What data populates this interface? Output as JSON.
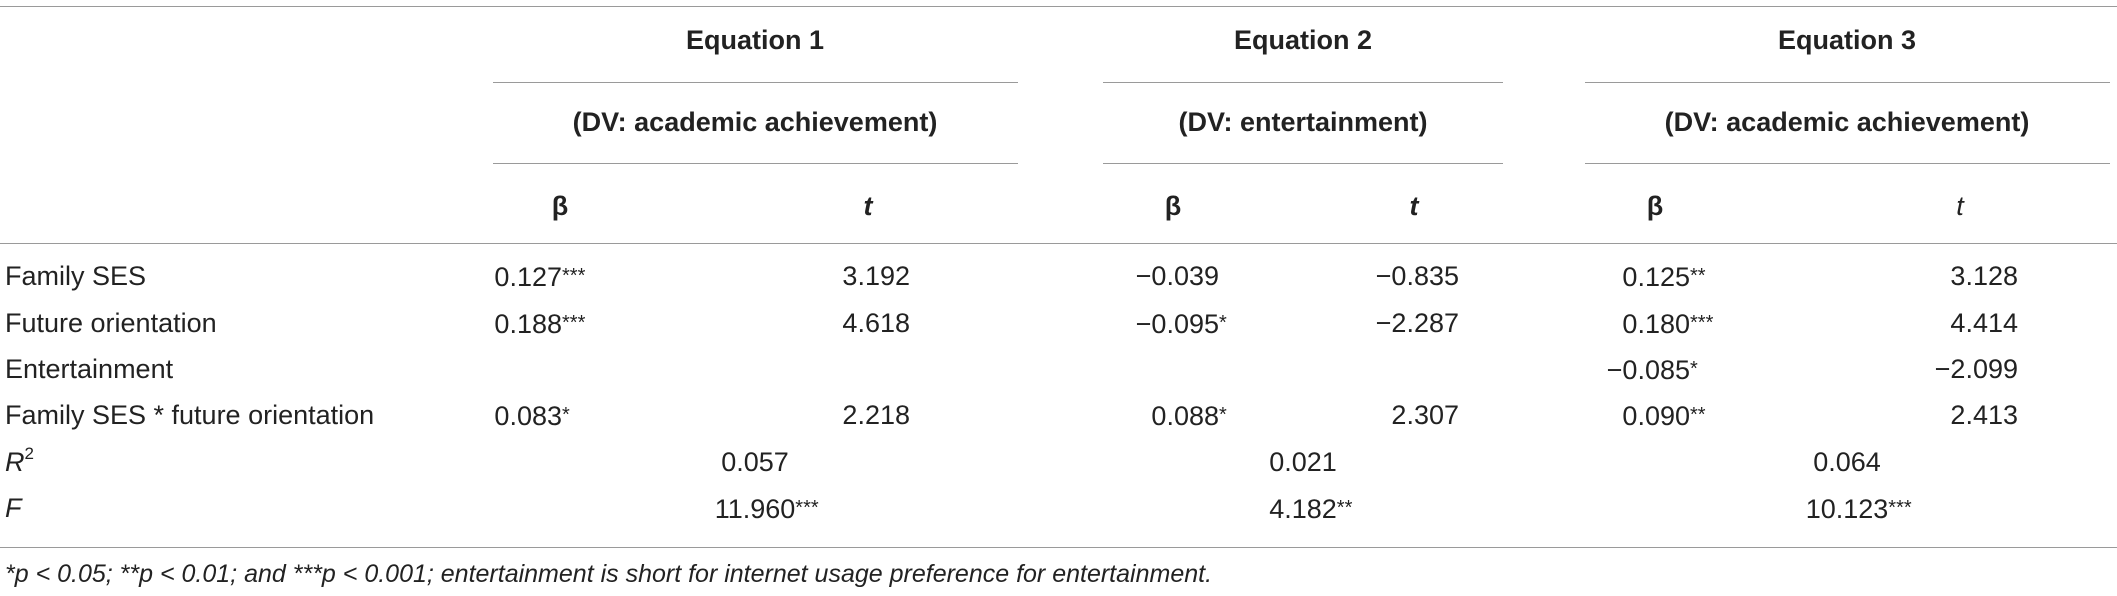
{
  "table": {
    "equations": [
      {
        "title": "Equation 1",
        "dv": "(DV: academic achievement)",
        "beta": "β",
        "t": "t"
      },
      {
        "title": "Equation 2",
        "dv": "(DV: entertainment)",
        "beta": "β",
        "t": "t"
      },
      {
        "title": "Equation 3",
        "dv": "(DV: academic achievement)",
        "beta": "β",
        "t": "t"
      }
    ],
    "rows": [
      {
        "label": "Family SES",
        "cells": [
          {
            "val": "0.127",
            "stars": "***"
          },
          {
            "val": "3.192",
            "stars": ""
          },
          {
            "val": "−0.039",
            "stars": ""
          },
          {
            "val": "−0.835",
            "stars": ""
          },
          {
            "val": "0.125",
            "stars": "**"
          },
          {
            "val": "3.128",
            "stars": ""
          }
        ]
      },
      {
        "label": "Future orientation",
        "cells": [
          {
            "val": "0.188",
            "stars": "***"
          },
          {
            "val": "4.618",
            "stars": ""
          },
          {
            "val": "−0.095",
            "stars": "*"
          },
          {
            "val": "−2.287",
            "stars": ""
          },
          {
            "val": "0.180",
            "stars": "***"
          },
          {
            "val": "4.414",
            "stars": ""
          }
        ]
      },
      {
        "label": "Entertainment",
        "cells": [
          {
            "val": "",
            "stars": ""
          },
          {
            "val": "",
            "stars": ""
          },
          {
            "val": "",
            "stars": ""
          },
          {
            "val": "",
            "stars": ""
          },
          {
            "val": "−0.085",
            "stars": "*"
          },
          {
            "val": "−2.099",
            "stars": ""
          }
        ]
      },
      {
        "label": "Family SES * future orientation",
        "cells": [
          {
            "val": "0.083",
            "stars": "*"
          },
          {
            "val": "2.218",
            "stars": ""
          },
          {
            "val": "0.088",
            "stars": "*"
          },
          {
            "val": "2.307",
            "stars": ""
          },
          {
            "val": "0.090",
            "stars": "**"
          },
          {
            "val": "2.413",
            "stars": ""
          }
        ]
      }
    ],
    "r2": {
      "label_base": "R",
      "label_sup": "2",
      "values": [
        "0.057",
        "0.021",
        "0.064"
      ]
    },
    "f": {
      "label": "F",
      "values": [
        {
          "val": "11.960",
          "stars": "***"
        },
        {
          "val": "4.182",
          "stars": "**"
        },
        {
          "val": "10.123",
          "stars": "***"
        }
      ]
    }
  },
  "footnote": "*p < 0.05; **p < 0.01; and ***p < 0.001; entertainment is short for internet usage preference for entertainment."
}
